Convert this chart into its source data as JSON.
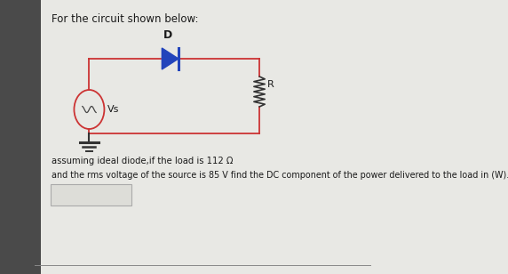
{
  "bg_color": "#4a4a4a",
  "panel_color": "#e8e8e4",
  "left_strip_color": "#5a5a5a",
  "title": "For the circuit shown below:",
  "title_fontsize": 8.5,
  "title_color": "#1a1a1a",
  "circuit_color": "#cc3333",
  "diode_color": "#2244bb",
  "text_line1": "assuming ideal diode,if the load is 112 Ω",
  "text_line2": "and the rms voltage of the source is 85 V find the DC component of the power delivered to the load in (W).",
  "text_fontsize": 7.2,
  "text_color": "#1a1a1a",
  "source_label": "Vs",
  "diode_label": "D",
  "resistor_label": "R",
  "ground_color": "#333333",
  "resistor_color": "#333333"
}
